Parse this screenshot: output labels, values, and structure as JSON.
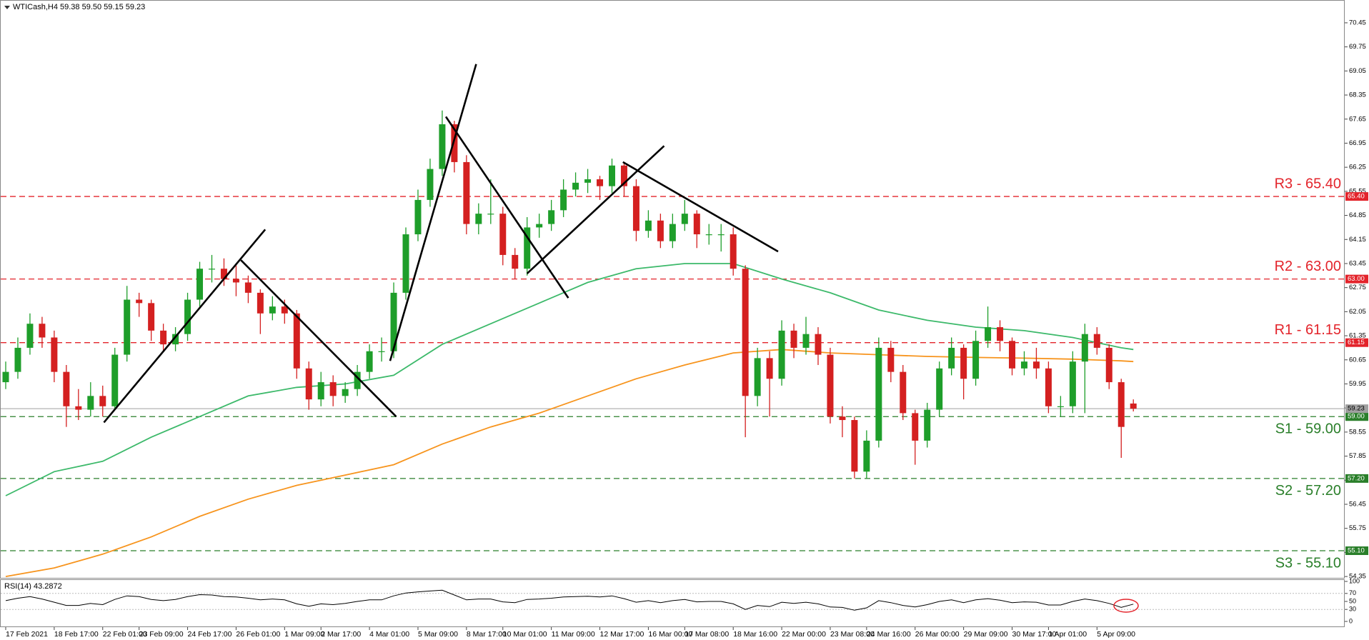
{
  "chart_data": {
    "type": "candlestick",
    "title": "WTICash,H4  59.38 59.50 59.15 59.23",
    "categories": [
      "17 Feb 2021",
      null,
      null,
      null,
      "18 Feb 17:00",
      null,
      null,
      null,
      "22 Feb 01:00",
      null,
      null,
      "23 Feb 09:00",
      null,
      null,
      null,
      "24 Feb 17:00",
      null,
      null,
      null,
      "26 Feb 01:00",
      null,
      null,
      null,
      "1 Mar 09:00",
      null,
      null,
      "2 Mar 17:00",
      null,
      null,
      null,
      "4 Mar 01:00",
      null,
      null,
      null,
      "5 Mar 09:00",
      null,
      null,
      null,
      "8 Mar 17:00",
      null,
      null,
      "10 Mar 01:00",
      null,
      null,
      null,
      "11 Mar 09:00",
      null,
      null,
      null,
      "12 Mar 17:00",
      null,
      null,
      null,
      "16 Mar 00:00",
      null,
      null,
      "17 Mar 08:00",
      null,
      null,
      null,
      "18 Mar 16:00",
      null,
      null,
      null,
      "22 Mar 00:00",
      null,
      null,
      null,
      "23 Mar 08:00",
      null,
      null,
      "24 Mar 16:00",
      null,
      null,
      null,
      "26 Mar 00:00",
      null,
      null,
      null,
      "29 Mar 09:00",
      null,
      null,
      null,
      "30 Mar 17:00",
      null,
      null,
      "1 Apr 01:00",
      null,
      null,
      null,
      "5 Apr 09:00",
      null,
      null,
      null
    ],
    "ohlc": [
      [
        60.0,
        60.6,
        59.8,
        60.3
      ],
      [
        60.3,
        61.3,
        60.1,
        61.0
      ],
      [
        61.0,
        62.0,
        60.8,
        61.7
      ],
      [
        61.7,
        61.9,
        61.0,
        61.3
      ],
      [
        61.3,
        61.5,
        60.0,
        60.3
      ],
      [
        60.3,
        60.5,
        58.7,
        59.3
      ],
      [
        59.3,
        59.8,
        58.9,
        59.2
      ],
      [
        59.2,
        60.0,
        59.0,
        59.6
      ],
      [
        59.6,
        59.9,
        59.0,
        59.3
      ],
      [
        59.3,
        61.0,
        59.2,
        60.8
      ],
      [
        60.8,
        62.8,
        60.6,
        62.4
      ],
      [
        62.4,
        62.6,
        61.9,
        62.3
      ],
      [
        62.3,
        62.4,
        61.2,
        61.5
      ],
      [
        61.5,
        61.7,
        60.9,
        61.1
      ],
      [
        61.1,
        61.6,
        60.9,
        61.4
      ],
      [
        61.4,
        62.6,
        61.2,
        62.4
      ],
      [
        62.4,
        63.5,
        62.2,
        63.3
      ],
      [
        63.3,
        63.7,
        62.9,
        63.3
      ],
      [
        63.3,
        63.6,
        62.8,
        63.0
      ],
      [
        63.0,
        63.4,
        62.5,
        62.9
      ],
      [
        62.9,
        63.1,
        62.3,
        62.6
      ],
      [
        62.6,
        62.7,
        61.4,
        62.0
      ],
      [
        62.0,
        62.5,
        61.8,
        62.2
      ],
      [
        62.2,
        62.4,
        61.7,
        62.0
      ],
      [
        62.0,
        62.1,
        60.1,
        60.4
      ],
      [
        60.4,
        60.6,
        59.2,
        59.5
      ],
      [
        59.5,
        60.3,
        59.3,
        60.0
      ],
      [
        60.0,
        60.2,
        59.3,
        59.6
      ],
      [
        59.6,
        60.0,
        59.4,
        59.8
      ],
      [
        59.8,
        60.5,
        59.6,
        60.3
      ],
      [
        60.3,
        61.1,
        60.1,
        60.9
      ],
      [
        60.9,
        61.3,
        60.6,
        60.9
      ],
      [
        60.9,
        62.9,
        60.7,
        62.6
      ],
      [
        62.6,
        64.5,
        62.4,
        64.3
      ],
      [
        64.3,
        65.6,
        64.1,
        65.3
      ],
      [
        65.3,
        66.5,
        65.1,
        66.2
      ],
      [
        66.2,
        67.9,
        66.0,
        67.5
      ],
      [
        67.5,
        67.6,
        66.1,
        66.4
      ],
      [
        66.4,
        66.6,
        64.3,
        64.6
      ],
      [
        64.6,
        65.2,
        64.3,
        64.9
      ],
      [
        64.9,
        65.9,
        64.6,
        64.9
      ],
      [
        64.9,
        65.1,
        63.4,
        63.7
      ],
      [
        63.7,
        63.9,
        63.0,
        63.3
      ],
      [
        63.3,
        64.8,
        63.1,
        64.5
      ],
      [
        64.5,
        64.9,
        64.2,
        64.6
      ],
      [
        64.6,
        65.3,
        64.4,
        65.0
      ],
      [
        65.0,
        65.9,
        64.8,
        65.6
      ],
      [
        65.6,
        66.1,
        65.4,
        65.8
      ],
      [
        65.8,
        66.2,
        65.5,
        65.9
      ],
      [
        65.9,
        66.0,
        65.3,
        65.7
      ],
      [
        65.7,
        66.5,
        65.5,
        66.3
      ],
      [
        66.3,
        66.4,
        65.4,
        65.7
      ],
      [
        65.7,
        65.9,
        64.1,
        64.4
      ],
      [
        64.4,
        65.0,
        64.2,
        64.7
      ],
      [
        64.7,
        64.9,
        63.9,
        64.1
      ],
      [
        64.1,
        64.9,
        63.9,
        64.6
      ],
      [
        64.6,
        65.3,
        64.4,
        64.9
      ],
      [
        64.9,
        65.0,
        63.9,
        64.3
      ],
      [
        64.3,
        64.6,
        64.0,
        64.3
      ],
      [
        64.3,
        64.6,
        63.8,
        64.3
      ],
      [
        64.3,
        64.5,
        63.1,
        63.3
      ],
      [
        63.3,
        63.4,
        58.4,
        59.6
      ],
      [
        59.6,
        61.0,
        59.3,
        60.7
      ],
      [
        60.7,
        60.9,
        59.0,
        60.1
      ],
      [
        60.1,
        61.8,
        59.9,
        61.5
      ],
      [
        61.5,
        61.7,
        60.7,
        61.0
      ],
      [
        61.0,
        61.9,
        60.8,
        61.4
      ],
      [
        61.4,
        61.6,
        60.5,
        60.8
      ],
      [
        60.8,
        61.0,
        58.8,
        59.0
      ],
      [
        59.0,
        59.3,
        58.4,
        58.9
      ],
      [
        58.9,
        59.0,
        57.2,
        57.4
      ],
      [
        57.4,
        58.6,
        57.2,
        58.3
      ],
      [
        58.3,
        61.3,
        58.1,
        61.0
      ],
      [
        61.0,
        61.2,
        60.0,
        60.3
      ],
      [
        60.3,
        60.5,
        58.9,
        59.1
      ],
      [
        59.1,
        59.2,
        57.6,
        58.3
      ],
      [
        58.3,
        59.4,
        58.1,
        59.2
      ],
      [
        59.2,
        60.6,
        59.0,
        60.4
      ],
      [
        60.4,
        61.3,
        60.2,
        61.0
      ],
      [
        61.0,
        61.1,
        59.5,
        60.1
      ],
      [
        60.1,
        61.5,
        59.9,
        61.2
      ],
      [
        61.2,
        62.2,
        61.0,
        61.6
      ],
      [
        61.6,
        61.8,
        60.9,
        61.2
      ],
      [
        61.2,
        61.3,
        60.2,
        60.4
      ],
      [
        60.4,
        60.9,
        60.2,
        60.6
      ],
      [
        60.6,
        61.0,
        60.1,
        60.4
      ],
      [
        60.4,
        60.6,
        59.1,
        59.3
      ],
      [
        59.3,
        59.6,
        59.0,
        59.3
      ],
      [
        59.3,
        60.9,
        59.1,
        60.6
      ],
      [
        60.6,
        61.7,
        59.1,
        61.4
      ],
      [
        61.4,
        61.6,
        60.8,
        61.0
      ],
      [
        61.0,
        61.1,
        59.8,
        60.0
      ],
      [
        60.0,
        60.1,
        57.8,
        58.7
      ],
      [
        59.38,
        59.5,
        59.15,
        59.23
      ]
    ],
    "up_color": "#1e9e2a",
    "down_color": "#d42020",
    "ylim": [
      54.29,
      71.03
    ],
    "yticks": [
      70.45,
      69.75,
      69.05,
      68.35,
      67.65,
      66.95,
      66.25,
      65.55,
      64.85,
      64.15,
      63.45,
      62.75,
      62.05,
      61.35,
      60.65,
      59.95,
      59.25,
      58.55,
      57.85,
      57.15,
      56.45,
      55.75,
      55.05,
      54.35
    ],
    "series": [
      {
        "color": "#3cb96a",
        "x": [
          0,
          4,
          8,
          12,
          16,
          20,
          24,
          28,
          32,
          36,
          40,
          44,
          48,
          52,
          56,
          60,
          64,
          68,
          72,
          76,
          80,
          84,
          88,
          92,
          93
        ],
        "values": [
          56.7,
          57.4,
          57.7,
          58.4,
          59.0,
          59.6,
          59.85,
          59.95,
          60.2,
          61.1,
          61.7,
          62.3,
          62.9,
          63.3,
          63.45,
          63.45,
          63.0,
          62.6,
          62.1,
          61.8,
          61.6,
          61.5,
          61.3,
          61.0,
          60.95
        ]
      },
      {
        "color": "#f7941d",
        "x": [
          0,
          4,
          8,
          12,
          16,
          20,
          24,
          28,
          32,
          36,
          40,
          44,
          48,
          52,
          56,
          60,
          64,
          68,
          72,
          76,
          80,
          84,
          88,
          92,
          93
        ],
        "values": [
          54.35,
          54.6,
          55.0,
          55.5,
          56.1,
          56.6,
          57.0,
          57.3,
          57.6,
          58.2,
          58.7,
          59.1,
          59.6,
          60.1,
          60.5,
          60.85,
          60.95,
          60.85,
          60.8,
          60.75,
          60.72,
          60.7,
          60.67,
          60.62,
          60.6
        ]
      }
    ],
    "levels": [
      {
        "name": "R3 - 65.40",
        "value": 65.4,
        "label": "65.40",
        "color": "#e3242b"
      },
      {
        "name": "R2 - 63.00",
        "value": 63.0,
        "label": "63.00",
        "color": "#e3242b"
      },
      {
        "name": "R1 - 61.15",
        "value": 61.15,
        "label": "61.15",
        "color": "#e3242b"
      },
      {
        "name": "S1 - 59.00",
        "value": 59.0,
        "label": "59.00",
        "color": "#2a7f2a"
      },
      {
        "name": "S2 - 57.20",
        "value": 57.2,
        "label": "57.20",
        "color": "#2a7f2a"
      },
      {
        "name": "S3 - 55.10",
        "value": 55.1,
        "label": "55.10",
        "color": "#2a7f2a"
      }
    ],
    "current": {
      "value": 59.23,
      "label": "59.23",
      "color": "#a0a0a0"
    },
    "trendline_color": "#000000",
    "trendlines": [
      {
        "x": [
          8.1,
          21.4
        ],
        "y": [
          58.83,
          64.44
        ]
      },
      {
        "x": [
          19.4,
          32.2
        ],
        "y": [
          63.55,
          59.0
        ]
      },
      {
        "x": [
          31.7,
          38.8
        ],
        "y": [
          60.62,
          69.25
        ]
      },
      {
        "x": [
          36.3,
          46.4
        ],
        "y": [
          67.72,
          62.45
        ]
      },
      {
        "x": [
          43.0,
          54.3
        ],
        "y": [
          63.16,
          66.87
        ]
      },
      {
        "x": [
          50.9,
          63.7
        ],
        "y": [
          66.4,
          63.8
        ]
      }
    ],
    "rsi": {
      "label": "RSI(14) 43.2872",
      "color": "#000000",
      "ylim": [
        0,
        100
      ],
      "yticks": [
        100,
        70,
        50,
        30,
        0
      ],
      "values": [
        52,
        58,
        62,
        56,
        48,
        40,
        40,
        45,
        42,
        55,
        64,
        62,
        55,
        52,
        55,
        62,
        67,
        66,
        62,
        61,
        58,
        54,
        56,
        54,
        44,
        38,
        44,
        42,
        45,
        50,
        54,
        54,
        64,
        71,
        74,
        76,
        78,
        66,
        54,
        56,
        56,
        49,
        47,
        55,
        56,
        58,
        61,
        62,
        63,
        61,
        64,
        57,
        48,
        52,
        47,
        52,
        55,
        49,
        50,
        50,
        44,
        30,
        40,
        37,
        48,
        45,
        48,
        44,
        36,
        35,
        28,
        34,
        52,
        47,
        40,
        36,
        42,
        50,
        54,
        47,
        54,
        57,
        53,
        47,
        49,
        48,
        41,
        41,
        50,
        56,
        52,
        45,
        35,
        43.2872
      ]
    }
  }
}
